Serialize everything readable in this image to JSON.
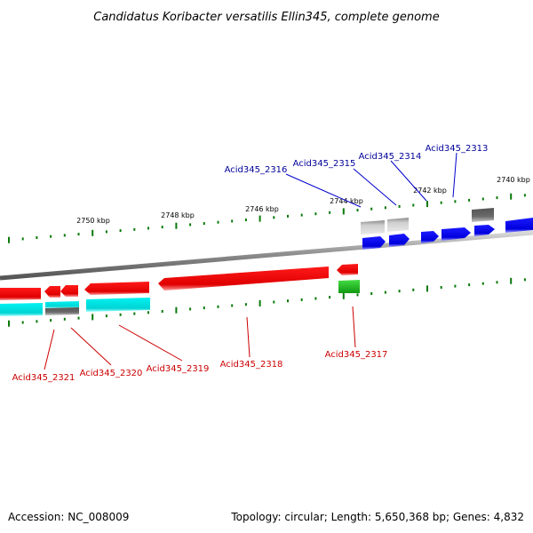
{
  "title": "Candidatus Koribacter versatilis Ellin345, complete genome",
  "footer": {
    "accession": "Accession: NC_008009",
    "summary": "Topology: circular; Length: 5,650,368 bp; Genes: 4,832"
  },
  "kbp_labels": [
    "2750 kbp",
    "2748 kbp",
    "2746 kbp",
    "2744 kbp",
    "2742 kbp",
    "2740 kbp"
  ],
  "gene_labels_top": [
    "Acid345_2316",
    "Acid345_2315",
    "Acid345_2314",
    "Acid345_2313"
  ],
  "gene_labels_bottom": [
    "Acid345_2321",
    "Acid345_2320",
    "Acid345_2319",
    "Acid345_2318",
    "Acid345_2317"
  ],
  "colors": {
    "forward_cds": "#0000ee",
    "reverse_cds": "#ee0000",
    "rna": "#22bb22",
    "cyan_feature": "#00dddd",
    "grey_feature": "#bbbbbb",
    "dark_feature": "#666666",
    "backbone": "#8a8a8a",
    "tick": "#0a7a0a"
  }
}
